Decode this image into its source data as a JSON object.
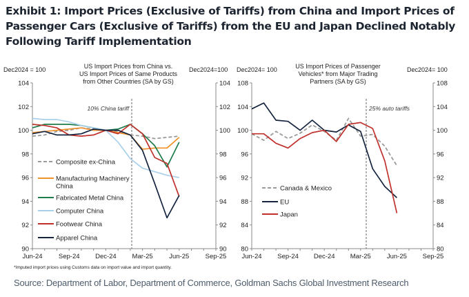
{
  "title": "Exhibit 1: Import Prices (Exclusive of Tariffs) from China and Import Prices of Passenger Cars (Exclusive of Tariffs) from the EU and Japan Declined Notably Following Tariff Implementation",
  "footnote": "*Imputed import prices using Customs data on import value and import quantity.",
  "source": "Source: Department of Labor, Department of Commerce, Goldman Sachs Global Investment Research",
  "chart_data": [
    {
      "type": "line",
      "title": [
        "US Import  Prices from China vs.",
        "US Import Prices of Same Products",
        "from Other Countries (SA by GS)"
      ],
      "left_axis_label": "Dec2024  = 100",
      "right_axis_label": "Dec2024=100",
      "x": [
        "Jun-24",
        "Jul-24",
        "Aug-24",
        "Sep-24",
        "Oct-24",
        "Nov-24",
        "Dec-24",
        "Jan-25",
        "Feb-25",
        "Mar-25",
        "Apr-25",
        "May-25",
        "Jun-25"
      ],
      "xticks": [
        "Jun-24",
        "Sep-24",
        "Dec-24",
        "Mar-25",
        "Jun-25",
        "Sep-25"
      ],
      "xlim": [
        "Jun-24",
        "Sep-25"
      ],
      "ylim": [
        90,
        104
      ],
      "yticks": [
        90,
        92,
        94,
        96,
        98,
        100,
        102,
        104
      ],
      "annotation": {
        "text": "10% China tariff",
        "x": "Feb-25"
      },
      "legend_position": "left",
      "series": [
        {
          "name": "Composite ex-China",
          "color": "#9a9a9a",
          "dashed": true,
          "values": [
            99.5,
            99.6,
            99.9,
            100.0,
            100.2,
            100.1,
            100.0,
            99.9,
            99.6,
            99.5,
            99.3,
            99.4,
            99.5
          ]
        },
        {
          "name": "Manufacturing Machinery China",
          "color": "#f0922b",
          "values": [
            99.8,
            99.9,
            100.0,
            100.1,
            100.2,
            100.0,
            100.0,
            99.8,
            99.6,
            98.4,
            98.5,
            98.5,
            99.4
          ]
        },
        {
          "name": "Fabricated Metal China",
          "color": "#1e7b4a",
          "values": [
            100.2,
            100.5,
            100.5,
            100.5,
            100.4,
            100.2,
            100.0,
            100.1,
            100.5,
            99.7,
            98.7,
            96.9,
            99.0
          ]
        },
        {
          "name": "Computer China",
          "color": "#a9d0ea",
          "values": [
            101.0,
            100.9,
            100.9,
            100.7,
            100.4,
            100.2,
            100.0,
            99.0,
            97.6,
            96.8,
            96.5,
            96.2,
            96.0
          ]
        },
        {
          "name": "Footwear China",
          "color": "#c0302b",
          "values": [
            100.5,
            100.4,
            100.2,
            99.6,
            99.5,
            99.6,
            100.0,
            99.7,
            100.5,
            99.7,
            97.7,
            97.2,
            94.4
          ]
        },
        {
          "name": "Apparel China",
          "color": "#14243e",
          "values": [
            99.7,
            99.9,
            99.6,
            99.6,
            99.7,
            100.1,
            100.0,
            100.0,
            99.6,
            98.3,
            95.5,
            92.6,
            94.5
          ]
        }
      ]
    },
    {
      "type": "line",
      "title": [
        "US Import Prices of Passenger",
        "Vehicles* from Major Trading",
        "Partners (SA by GS)"
      ],
      "left_axis_label": "Dec2024=  100",
      "right_axis_label": "Dec2024=  100",
      "x": [
        "Jun-24",
        "Jul-24",
        "Aug-24",
        "Sep-24",
        "Oct-24",
        "Nov-24",
        "Dec-24",
        "Jan-25",
        "Feb-25",
        "Mar-25",
        "Apr-25",
        "May-25",
        "Jun-25"
      ],
      "xticks": [
        "Jun-24",
        "Sep-24",
        "Dec-24",
        "Mar-25",
        "Jun-25",
        "Sep-25"
      ],
      "xlim": [
        "Jun-24",
        "Sep-25"
      ],
      "ylim": [
        80,
        108
      ],
      "yticks": [
        80,
        84,
        88,
        92,
        96,
        100,
        104,
        108
      ],
      "annotation": {
        "text": "25% auto tariffs",
        "x": "Mar-25"
      },
      "legend_position": "bottom-left",
      "series": [
        {
          "name": "Canada & Mexico",
          "color": "#9a9a9a",
          "dashed": true,
          "values": [
            99.4,
            98.3,
            99.8,
            98.6,
            99.5,
            100.9,
            99.8,
            98.3,
            102.0,
            99.0,
            99.3,
            97.3,
            94.0
          ]
        },
        {
          "name": "EU",
          "color": "#14243e",
          "values": [
            103.6,
            104.6,
            101.7,
            101.5,
            100.0,
            101.7,
            100.0,
            99.7,
            100.9,
            99.8,
            93.5,
            90.5,
            88.6
          ]
        },
        {
          "name": "Japan",
          "color": "#c0302b",
          "values": [
            99.4,
            99.4,
            97.8,
            97.0,
            98.6,
            99.6,
            100.0,
            98.1,
            101.0,
            101.3,
            100.3,
            94.8,
            86.0
          ]
        }
      ]
    }
  ]
}
